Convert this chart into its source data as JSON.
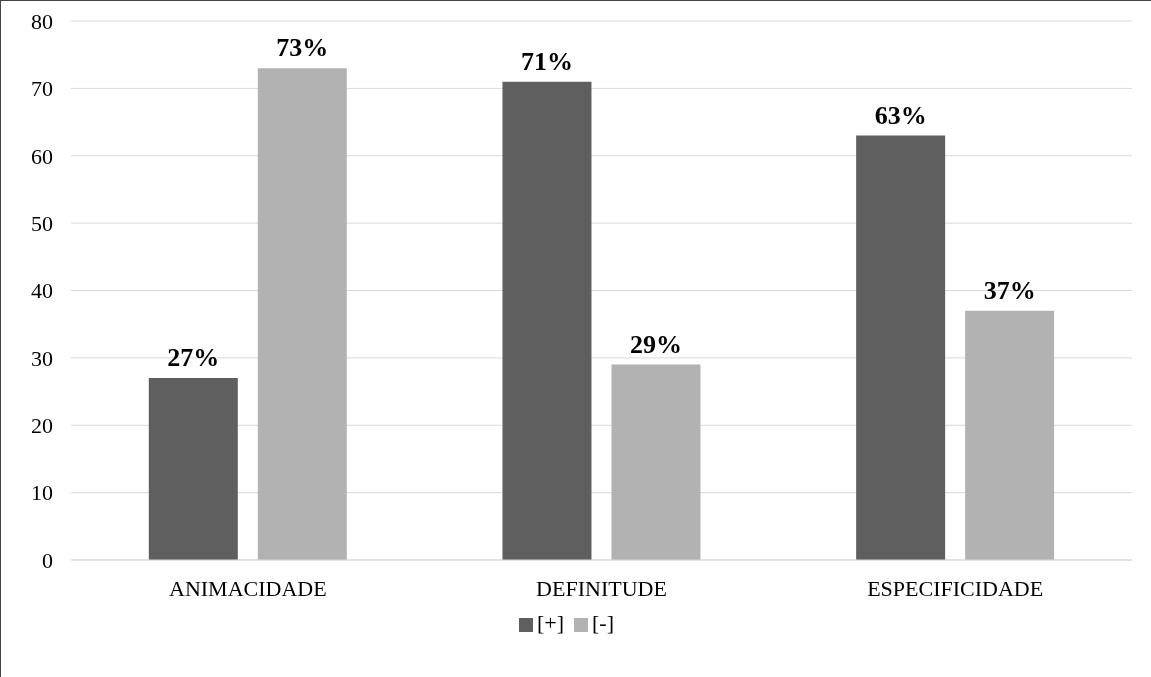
{
  "chart_data": {
    "type": "bar",
    "categories": [
      "ANIMACIDADE",
      "DEFINITUDE",
      "ESPECIFICIDADE"
    ],
    "series": [
      {
        "name": "[+]",
        "color": "#5f5f5f",
        "values": [
          27,
          71,
          63
        ],
        "value_labels": [
          "27%",
          "71%",
          "63%"
        ]
      },
      {
        "name": "[-]",
        "color": "#b2b2b2",
        "values": [
          73,
          29,
          37
        ],
        "value_labels": [
          "73%",
          "29%",
          "37%"
        ]
      }
    ],
    "ylim": [
      0,
      80
    ],
    "yticks": [
      0,
      10,
      20,
      30,
      40,
      50,
      60,
      70,
      80
    ],
    "grid": "y",
    "legend": "bottom"
  }
}
